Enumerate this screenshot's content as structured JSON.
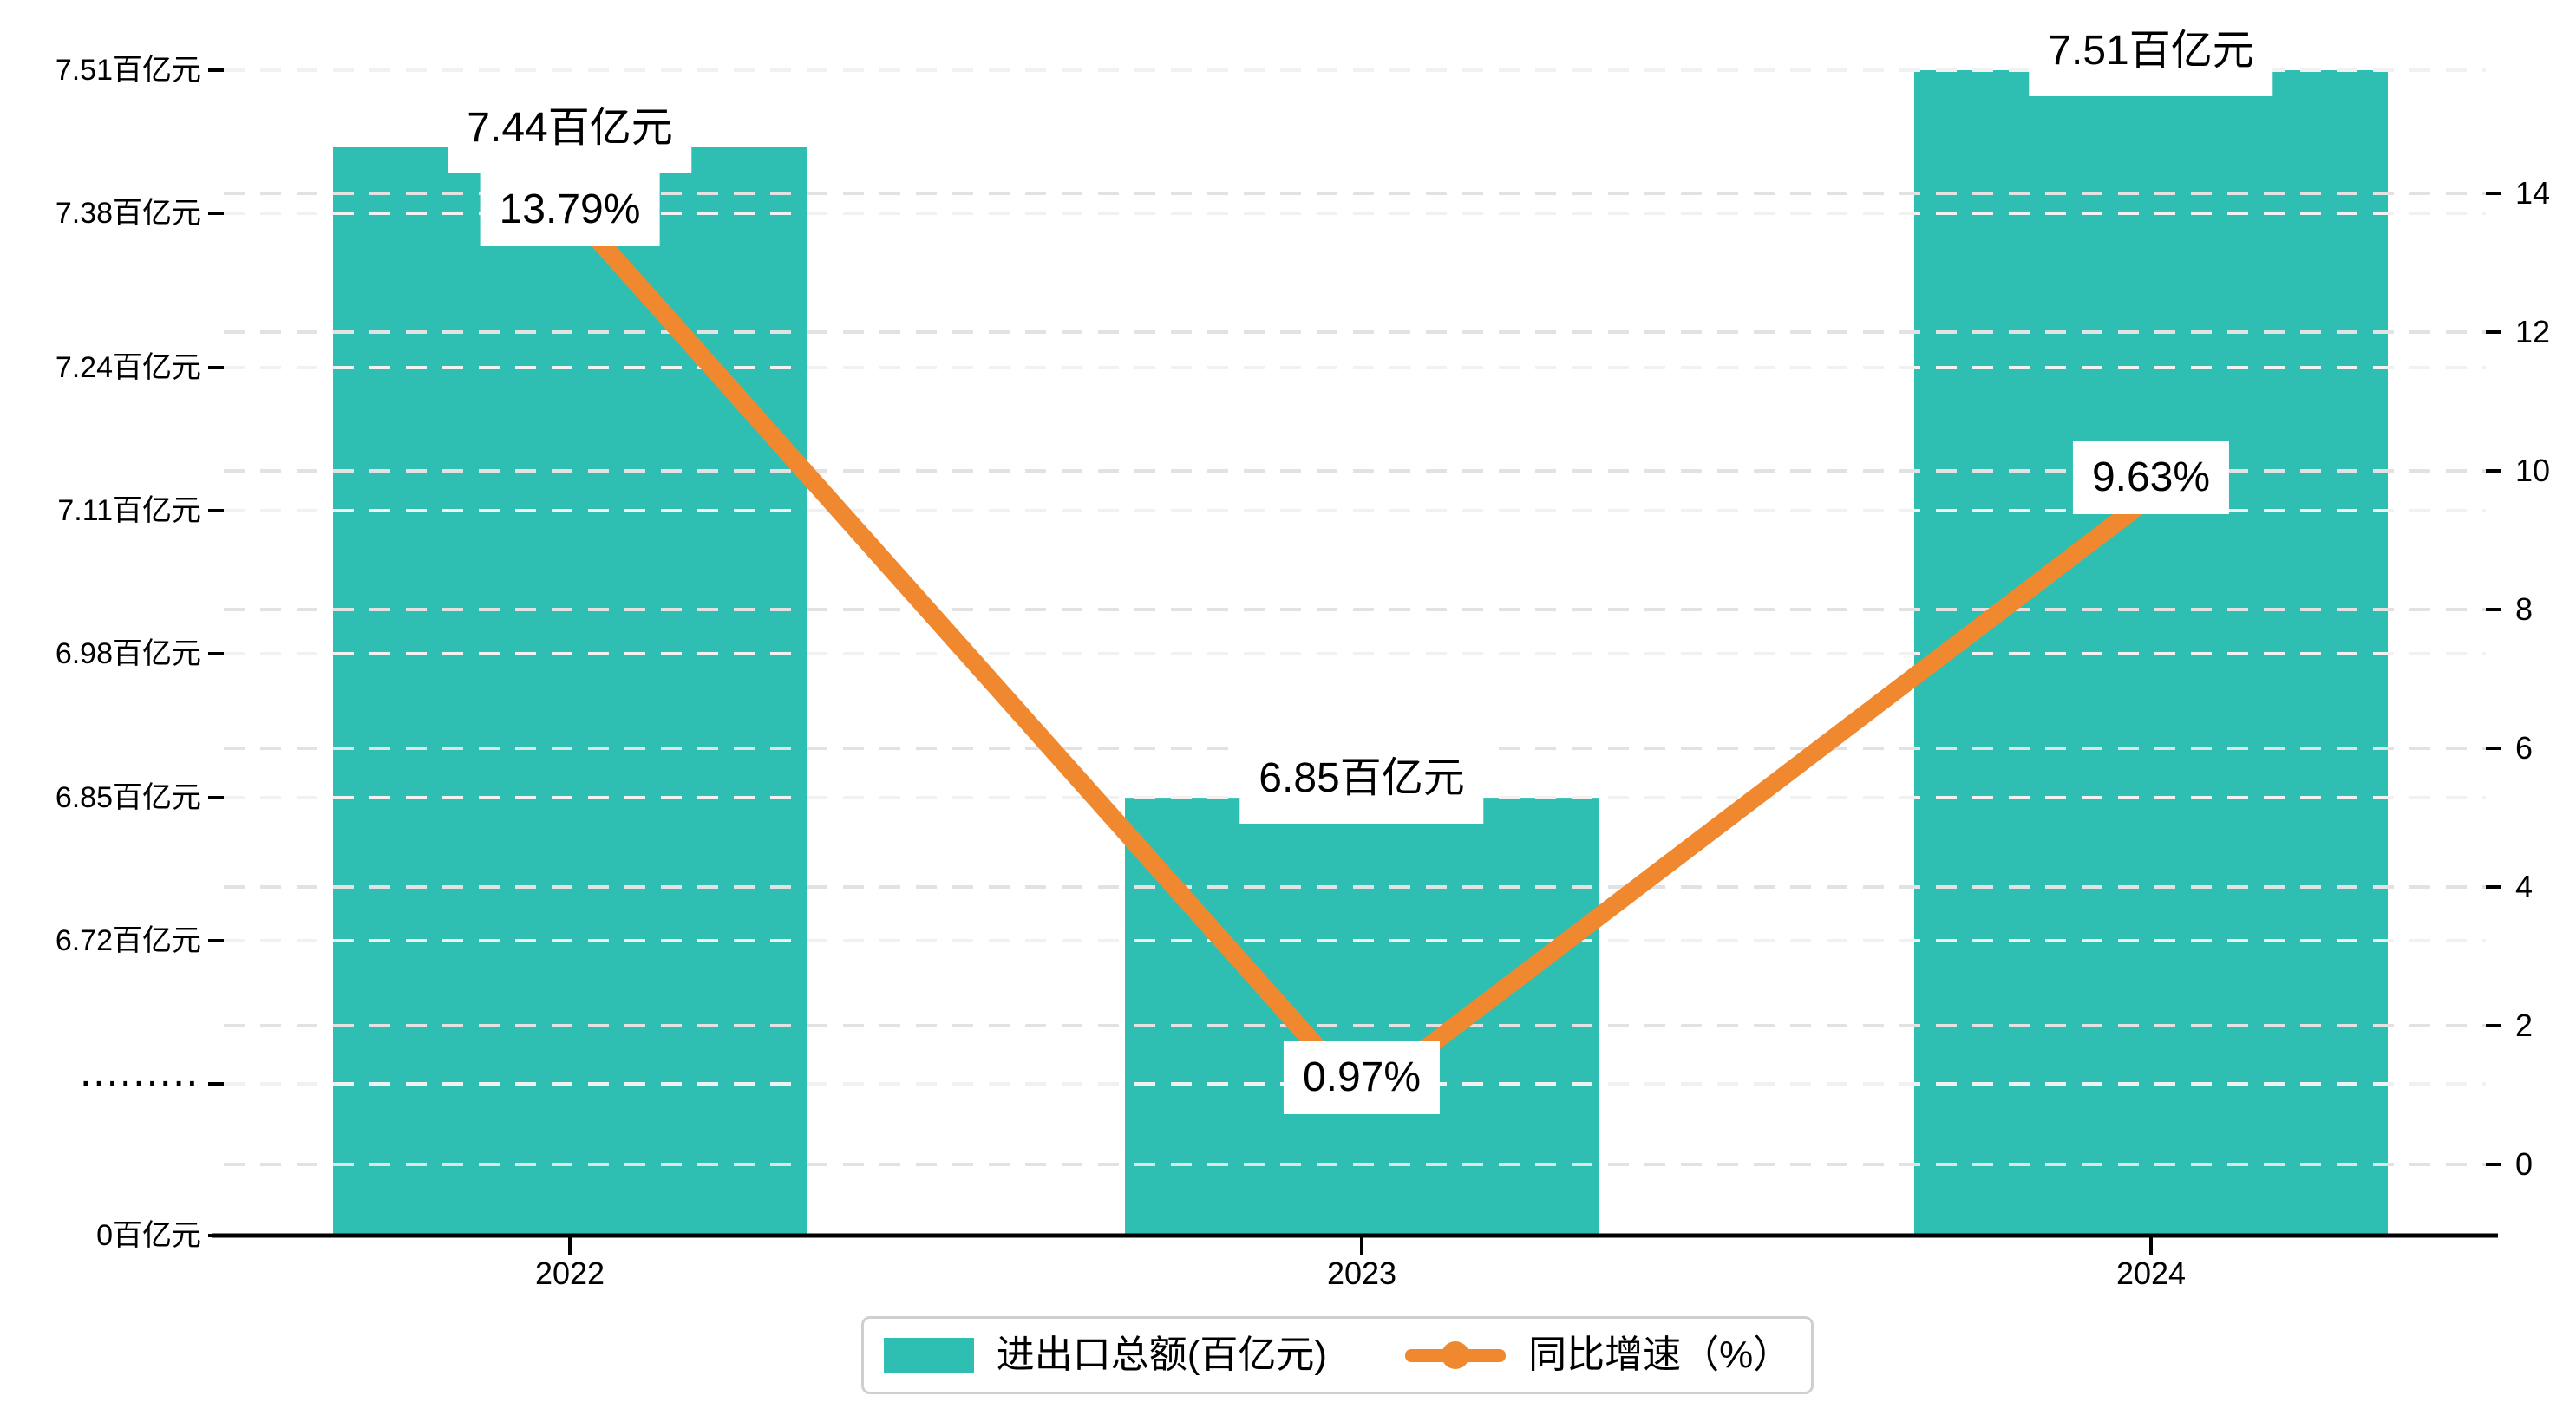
{
  "chart_data": {
    "type": "bar",
    "categories": [
      "2022",
      "2023",
      "2024"
    ],
    "series": [
      {
        "name": "进出口总额(百亿元)",
        "type": "bar",
        "unit": "百亿元",
        "values": [
          7.44,
          6.85,
          7.51
        ],
        "labels": [
          "7.44百亿元",
          "6.85百亿元",
          "7.51百亿元"
        ],
        "color": "#2FBFB2"
      },
      {
        "name": "同比增速（%）",
        "type": "line",
        "unit": "%",
        "values": [
          13.79,
          0.97,
          9.63
        ],
        "labels": [
          "13.79%",
          "0.97%",
          "9.63%"
        ],
        "color": "#F0882F"
      }
    ],
    "y_axis_left": {
      "tick_labels": [
        "7.51百亿元",
        "7.38百亿元",
        "7.24百亿元",
        "7.11百亿元",
        "6.98百亿元",
        "6.85百亿元",
        "6.72百亿元",
        "·········",
        "0百亿元"
      ],
      "tick_values": [
        7.51,
        7.38,
        7.24,
        7.11,
        6.98,
        6.85,
        6.72,
        null,
        0
      ],
      "axis_break": true
    },
    "y_axis_right": {
      "tick_labels": [
        "14",
        "12",
        "10",
        "8",
        "6",
        "4",
        "2",
        "0"
      ],
      "tick_values": [
        14,
        12,
        10,
        8,
        6,
        4,
        2,
        0
      ]
    },
    "legend_position": "bottom",
    "grid": "dashed"
  },
  "legend": {
    "bar_label": "进出口总额(百亿元)",
    "line_label": "同比增速（%）"
  },
  "colors": {
    "bar": "#2FBFB2",
    "line": "#F0882F",
    "grid_value": "#F1F1F1",
    "grid_percent": "#E2E2E2",
    "axis": "#000000",
    "label_bg": "#FFFFFF",
    "legend_border": "#CFCFCF"
  }
}
